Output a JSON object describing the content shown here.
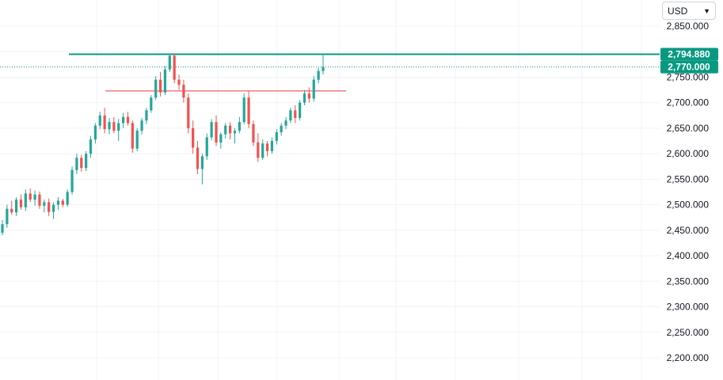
{
  "currency_selector": {
    "value": "USD",
    "icon": "chevron-down-icon"
  },
  "chart_data": {
    "type": "candlestick",
    "title": "",
    "xlabel": "",
    "ylabel": "",
    "ylim": [
      2180,
      2880
    ],
    "y_ticks": [
      2850,
      2800,
      2750,
      2700,
      2650,
      2600,
      2550,
      2500,
      2450,
      2400,
      2350,
      2300,
      2250,
      2200
    ],
    "y_tick_labels": [
      "2,850.000",
      "2,800.000",
      "2,750.000",
      "2,700.000",
      "2,650.000",
      "2,600.000",
      "2,550.000",
      "2,500.000",
      "2,450.000",
      "2,400.000",
      "2,350.000",
      "2,300.000",
      "2,250.000",
      "2,200.000"
    ],
    "grid": true,
    "colors": {
      "up": "#26a69a",
      "down": "#ef5350",
      "resistance": "#089981",
      "support": "#f23645",
      "current_label_bg": "#089981"
    },
    "price_labels": [
      {
        "label": "2,794.880",
        "value": 2794.88,
        "kind": "line"
      },
      {
        "label": "2,770.000",
        "value": 2770.0,
        "kind": "last"
      }
    ],
    "levels": [
      {
        "price": 2794.88,
        "color": "#089981",
        "style": "solid"
      },
      {
        "price": 2770.0,
        "color": "#089981",
        "style": "dotted"
      },
      {
        "price": 2723,
        "color": "#f23645",
        "style": "solid",
        "extent": "partial"
      }
    ],
    "candles": [
      [
        2445,
        2470,
        2440,
        2462
      ],
      [
        2462,
        2500,
        2455,
        2492
      ],
      [
        2492,
        2508,
        2480,
        2485
      ],
      [
        2485,
        2515,
        2478,
        2510
      ],
      [
        2510,
        2520,
        2490,
        2495
      ],
      [
        2495,
        2530,
        2488,
        2522
      ],
      [
        2522,
        2532,
        2505,
        2510
      ],
      [
        2510,
        2528,
        2498,
        2520
      ],
      [
        2520,
        2526,
        2492,
        2498
      ],
      [
        2498,
        2510,
        2485,
        2505
      ],
      [
        2505,
        2512,
        2478,
        2486
      ],
      [
        2486,
        2505,
        2472,
        2500
      ],
      [
        2500,
        2515,
        2490,
        2508
      ],
      [
        2508,
        2512,
        2495,
        2500
      ],
      [
        2500,
        2530,
        2496,
        2525
      ],
      [
        2525,
        2575,
        2520,
        2568
      ],
      [
        2568,
        2600,
        2560,
        2592
      ],
      [
        2592,
        2598,
        2565,
        2572
      ],
      [
        2572,
        2605,
        2566,
        2600
      ],
      [
        2600,
        2635,
        2592,
        2628
      ],
      [
        2628,
        2660,
        2620,
        2655
      ],
      [
        2655,
        2682,
        2648,
        2675
      ],
      [
        2675,
        2690,
        2640,
        2648
      ],
      [
        2648,
        2670,
        2638,
        2662
      ],
      [
        2662,
        2672,
        2640,
        2645
      ],
      [
        2645,
        2668,
        2625,
        2660
      ],
      [
        2660,
        2680,
        2650,
        2672
      ],
      [
        2672,
        2682,
        2655,
        2660
      ],
      [
        2660,
        2665,
        2602,
        2610
      ],
      [
        2610,
        2650,
        2605,
        2645
      ],
      [
        2645,
        2670,
        2638,
        2665
      ],
      [
        2665,
        2690,
        2658,
        2685
      ],
      [
        2685,
        2715,
        2680,
        2710
      ],
      [
        2710,
        2752,
        2705,
        2745
      ],
      [
        2745,
        2760,
        2712,
        2720
      ],
      [
        2720,
        2772,
        2715,
        2765
      ],
      [
        2765,
        2796,
        2760,
        2792
      ],
      [
        2792,
        2795,
        2738,
        2745
      ],
      [
        2745,
        2755,
        2725,
        2735
      ],
      [
        2735,
        2745,
        2700,
        2710
      ],
      [
        2710,
        2718,
        2640,
        2650
      ],
      [
        2650,
        2665,
        2600,
        2612
      ],
      [
        2612,
        2625,
        2560,
        2570
      ],
      [
        2570,
        2600,
        2540,
        2595
      ],
      [
        2595,
        2640,
        2588,
        2632
      ],
      [
        2632,
        2668,
        2626,
        2662
      ],
      [
        2662,
        2675,
        2615,
        2622
      ],
      [
        2622,
        2642,
        2610,
        2638
      ],
      [
        2638,
        2660,
        2630,
        2655
      ],
      [
        2655,
        2662,
        2628,
        2640
      ],
      [
        2640,
        2650,
        2620,
        2645
      ],
      [
        2645,
        2672,
        2640,
        2662
      ],
      [
        2662,
        2718,
        2658,
        2710
      ],
      [
        2710,
        2722,
        2650,
        2658
      ],
      [
        2658,
        2665,
        2615,
        2622
      ],
      [
        2622,
        2640,
        2584,
        2592
      ],
      [
        2592,
        2628,
        2588,
        2620
      ],
      [
        2620,
        2625,
        2595,
        2605
      ],
      [
        2605,
        2632,
        2600,
        2625
      ],
      [
        2625,
        2648,
        2618,
        2642
      ],
      [
        2642,
        2660,
        2635,
        2655
      ],
      [
        2655,
        2672,
        2648,
        2665
      ],
      [
        2665,
        2690,
        2660,
        2685
      ],
      [
        2685,
        2695,
        2660,
        2670
      ],
      [
        2670,
        2705,
        2665,
        2700
      ],
      [
        2700,
        2725,
        2695,
        2718
      ],
      [
        2718,
        2730,
        2700,
        2708
      ],
      [
        2708,
        2752,
        2702,
        2745
      ],
      [
        2745,
        2768,
        2738,
        2762
      ],
      [
        2762,
        2796,
        2755,
        2770
      ]
    ]
  }
}
